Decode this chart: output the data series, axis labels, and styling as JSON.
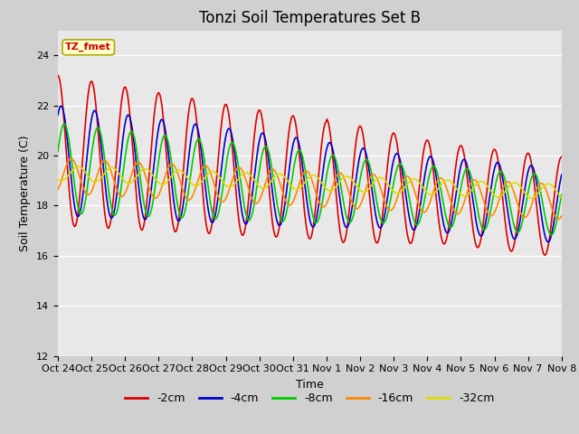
{
  "title": "Tonzi Soil Temperatures Set B",
  "xlabel": "Time",
  "ylabel": "Soil Temperature (C)",
  "ylim": [
    12,
    25
  ],
  "yticks": [
    12,
    14,
    16,
    18,
    20,
    22,
    24
  ],
  "legend_labels": [
    "-2cm",
    "-4cm",
    "-8cm",
    "-16cm",
    "-32cm"
  ],
  "legend_colors": [
    "#dd0000",
    "#0000cc",
    "#00cc00",
    "#ff8800",
    "#dddd00"
  ],
  "annotation_text": "TZ_fmet",
  "annotation_color": "#cc0000",
  "annotation_bg": "#ffffcc",
  "fig_bg": "#d0d0d0",
  "plot_bg": "#e8e8e8",
  "xtick_labels": [
    "Oct 24",
    "Oct 25",
    "Oct 26",
    "Oct 27",
    "Oct 28",
    "Oct 29",
    "Oct 30",
    "Oct 31",
    "Nov 1",
    "Nov 2",
    "Nov 3",
    "Nov 4",
    "Nov 5",
    "Nov 6",
    "Nov 7",
    "Nov 8"
  ],
  "n_points": 720,
  "n_days": 15,
  "title_fontsize": 12,
  "axis_label_fontsize": 9,
  "tick_fontsize": 8
}
